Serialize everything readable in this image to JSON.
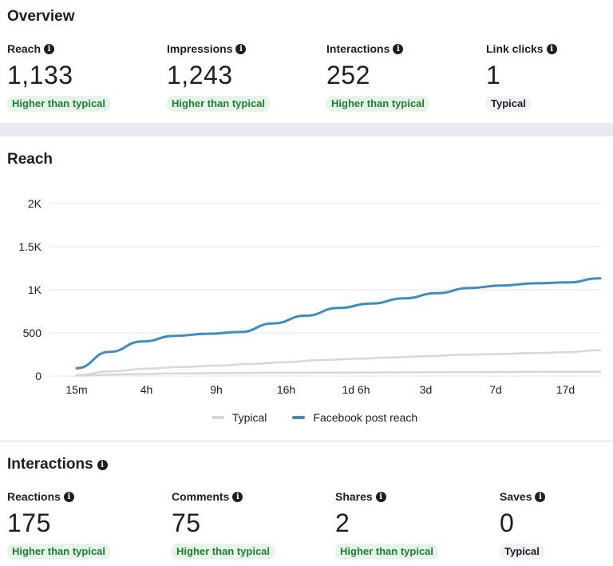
{
  "overview": {
    "title": "Overview",
    "metrics": [
      {
        "label": "Reach",
        "value": "1,133",
        "badge": "Higher than typical"
      },
      {
        "label": "Impressions",
        "value": "1,243",
        "badge": "Higher than typical"
      },
      {
        "label": "Interactions",
        "value": "252",
        "badge": "Higher than typical"
      },
      {
        "label": "Link clicks",
        "value": "1",
        "badge": "Typical"
      }
    ]
  },
  "reach_section": {
    "title": "Reach"
  },
  "chart_data": {
    "type": "line",
    "title": "Reach",
    "xlabel": "",
    "ylabel": "",
    "x_ticks": [
      "15m",
      "4h",
      "9h",
      "16h",
      "1d 6h",
      "3d",
      "7d",
      "17d"
    ],
    "y_ticks": [
      "0",
      "500",
      "1K",
      "1.5K",
      "2K"
    ],
    "ylim": [
      0,
      2000
    ],
    "grid": true,
    "legend": "bottom",
    "series": [
      {
        "name": "Typical",
        "color": "#d5d7da",
        "values": [
          10,
          55,
          85,
          105,
          120,
          140,
          160,
          185,
          200,
          215,
          230,
          245,
          255,
          265,
          275,
          300
        ]
      },
      {
        "name": "Facebook post reach",
        "color": "#3d8dbf",
        "values": [
          90,
          280,
          400,
          465,
          490,
          510,
          610,
          700,
          790,
          840,
          900,
          960,
          1020,
          1050,
          1075,
          1085,
          1133
        ]
      },
      {
        "name": "",
        "color": "#d5d7da",
        "values": [
          5,
          20,
          30,
          35,
          38,
          40,
          42,
          44,
          46,
          48,
          50
        ]
      }
    ]
  },
  "legend": {
    "typical_label": "Typical",
    "reach_label": "Facebook post reach"
  },
  "interactions": {
    "title": "Interactions",
    "metrics": [
      {
        "label": "Reactions",
        "value": "175",
        "badge": "Higher than typical"
      },
      {
        "label": "Comments",
        "value": "75",
        "badge": "Higher than typical"
      },
      {
        "label": "Shares",
        "value": "2",
        "badge": "Higher than typical"
      },
      {
        "label": "Saves",
        "value": "0",
        "badge": "Typical"
      }
    ]
  },
  "icons": {
    "info": "info-icon"
  }
}
